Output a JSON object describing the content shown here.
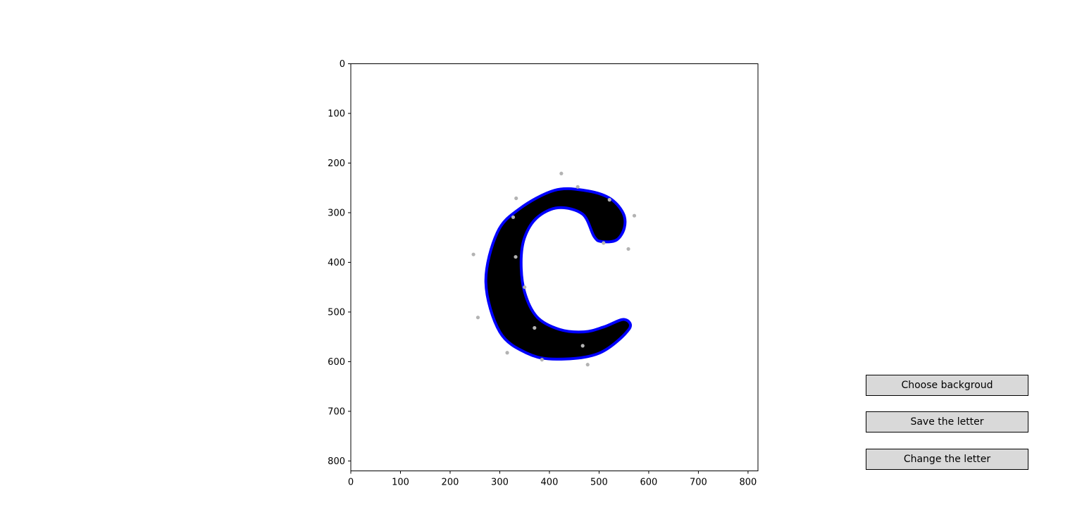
{
  "buttons": {
    "choose_background": "Choose backgroud",
    "save_letter": "Save the letter",
    "change_letter": "Change the letter"
  },
  "plot": {
    "x_ticks": [
      0,
      100,
      200,
      300,
      400,
      500,
      600,
      700,
      800
    ],
    "y_ticks": [
      0,
      100,
      200,
      300,
      400,
      500,
      600,
      700,
      800
    ],
    "x_range": [
      0,
      820
    ],
    "y_range": [
      820,
      0
    ],
    "y_inverted": true,
    "letter": "C",
    "letter_fill": "#000000",
    "outline_color": "#0000ff",
    "control_point_color": "#b3b3b3",
    "outer_contour": [
      [
        560,
        535
      ],
      [
        500,
        583
      ],
      [
        415,
        595
      ],
      [
        355,
        583
      ],
      [
        300,
        540
      ],
      [
        272,
        440
      ],
      [
        295,
        340
      ],
      [
        340,
        292
      ],
      [
        410,
        255
      ],
      [
        470,
        255
      ],
      [
        520,
        270
      ],
      [
        548,
        300
      ],
      [
        551,
        330
      ],
      [
        535,
        355
      ],
      [
        505,
        358
      ],
      [
        490,
        348
      ]
    ],
    "inner_contour": [
      [
        490,
        348
      ],
      [
        467,
        303
      ],
      [
        418,
        290
      ],
      [
        375,
        310
      ],
      [
        350,
        350
      ],
      [
        343,
        400
      ],
      [
        350,
        460
      ],
      [
        375,
        510
      ],
      [
        420,
        535
      ],
      [
        470,
        540
      ],
      [
        510,
        530
      ],
      [
        550,
        515
      ]
    ],
    "control_points": [
      [
        424,
        221
      ],
      [
        457,
        248
      ],
      [
        521,
        274
      ],
      [
        571,
        306
      ],
      [
        559,
        373
      ],
      [
        509,
        361
      ],
      [
        333,
        271
      ],
      [
        327,
        309
      ],
      [
        247,
        384
      ],
      [
        332,
        389
      ],
      [
        350,
        450
      ],
      [
        256,
        511
      ],
      [
        370,
        532
      ],
      [
        467,
        568
      ],
      [
        315,
        582
      ],
      [
        385,
        596
      ],
      [
        477,
        606
      ]
    ]
  }
}
